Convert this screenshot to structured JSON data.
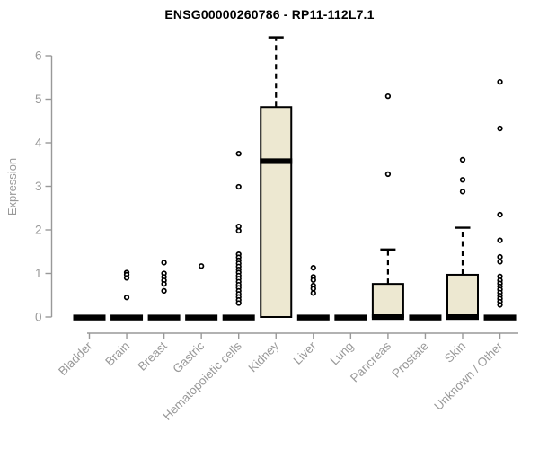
{
  "window": {
    "background": "#ffffff"
  },
  "chart_data": {
    "type": "boxplot",
    "title": "ENSG00000260786 - RP11-112L7.1",
    "xlabel": "",
    "ylabel": "Expression",
    "ylim": [
      0,
      6.5
    ],
    "yticks": [
      0,
      1,
      2,
      3,
      4,
      5,
      6
    ],
    "grid": false,
    "legend": false,
    "categories": [
      "Bladder",
      "Brain",
      "Breast",
      "Gastric",
      "Hematopoietic cells",
      "Kidney",
      "Liver",
      "Lung",
      "Pancreas",
      "Prostate",
      "Skin",
      "Unknown / Other"
    ],
    "series": [
      {
        "name": "Bladder",
        "q1": 0,
        "median": 0,
        "q3": 0,
        "whisker_low": 0,
        "whisker_high": 0,
        "outliers": []
      },
      {
        "name": "Brain",
        "q1": 0,
        "median": 0,
        "q3": 0,
        "whisker_low": 0,
        "whisker_high": 0,
        "outliers": [
          1.02,
          0.97,
          0.9,
          0.45
        ]
      },
      {
        "name": "Breast",
        "q1": 0,
        "median": 0,
        "q3": 0,
        "whisker_low": 0,
        "whisker_high": 0,
        "outliers": [
          1.25,
          1.0,
          0.92,
          0.84,
          0.76,
          0.6
        ]
      },
      {
        "name": "Gastric",
        "q1": 0,
        "median": 0,
        "q3": 0,
        "whisker_low": 0,
        "whisker_high": 0,
        "outliers": [
          1.17
        ]
      },
      {
        "name": "Hematopoietic cells",
        "q1": 0,
        "median": 0,
        "q3": 0,
        "whisker_low": 0,
        "whisker_high": 0,
        "outliers": [
          3.75,
          2.99,
          2.08,
          1.98,
          1.44,
          1.37,
          1.3,
          1.23,
          1.16,
          1.09,
          1.02,
          0.95,
          0.88,
          0.81,
          0.74,
          0.67,
          0.6,
          0.53,
          0.46,
          0.39,
          0.32
        ]
      },
      {
        "name": "Kidney",
        "q1": 0,
        "median": 3.58,
        "q3": 4.82,
        "whisker_low": 0,
        "whisker_high": 6.42,
        "outliers": []
      },
      {
        "name": "Liver",
        "q1": 0,
        "median": 0,
        "q3": 0,
        "whisker_low": 0,
        "whisker_high": 0,
        "outliers": [
          1.13,
          0.92,
          0.85,
          0.72,
          0.65,
          0.55
        ]
      },
      {
        "name": "Lung",
        "q1": 0,
        "median": 0,
        "q3": 0,
        "whisker_low": 0,
        "whisker_high": 0,
        "outliers": []
      },
      {
        "name": "Pancreas",
        "q1": 0,
        "median": 0,
        "q3": 0.76,
        "whisker_low": 0,
        "whisker_high": 1.55,
        "outliers": [
          5.07,
          3.28
        ]
      },
      {
        "name": "Prostate",
        "q1": 0,
        "median": 0,
        "q3": 0,
        "whisker_low": 0,
        "whisker_high": 0,
        "outliers": []
      },
      {
        "name": "Skin",
        "q1": 0,
        "median": 0,
        "q3": 0.97,
        "whisker_low": 0,
        "whisker_high": 2.05,
        "outliers": [
          3.61,
          3.15,
          2.88
        ]
      },
      {
        "name": "Unknown / Other",
        "q1": 0,
        "median": 0,
        "q3": 0,
        "whisker_low": 0,
        "whisker_high": 0,
        "outliers": [
          5.4,
          4.33,
          2.35,
          1.76,
          1.38,
          1.27,
          0.93,
          0.84,
          0.77,
          0.7,
          0.63,
          0.56,
          0.49,
          0.42,
          0.35,
          0.28
        ]
      }
    ]
  },
  "colors": {
    "box_fill": "#EDE8D1",
    "box_stroke": "#000000",
    "median": "#000000",
    "whisker": "#000000",
    "outlier_stroke": "#000000",
    "outlier_fill": "#ffffff",
    "axis": "#999999",
    "tick_label": "#999999",
    "title": "#000000"
  }
}
